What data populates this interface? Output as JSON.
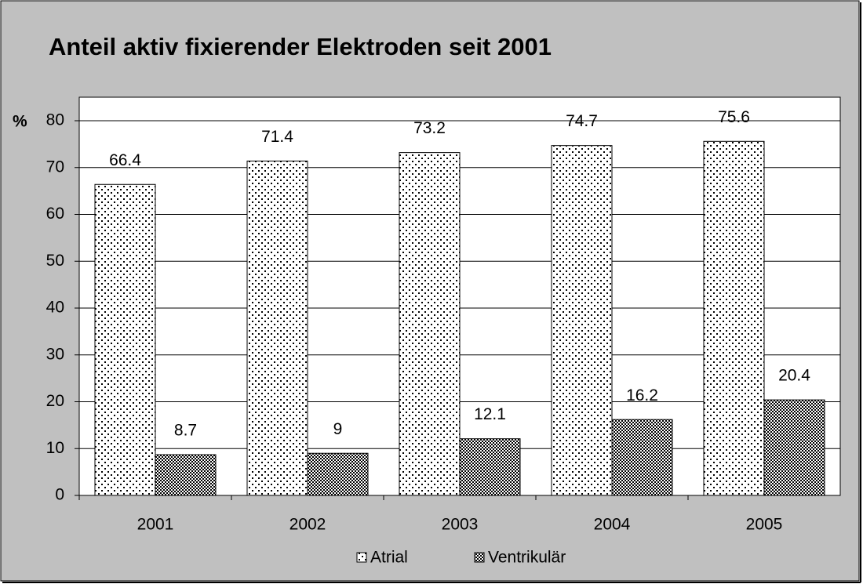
{
  "chart_data": {
    "type": "bar",
    "title": "Anteil aktiv fixierender Elektroden seit 2001",
    "y_label": "%",
    "categories": [
      "2001",
      "2002",
      "2003",
      "2004",
      "2005"
    ],
    "series": [
      {
        "name": "Atrial",
        "color": "#ffffff",
        "values": [
          66.4,
          71.4,
          73.2,
          74.7,
          75.6
        ]
      },
      {
        "name": "Ventrikulär",
        "color": "#555555",
        "values": [
          8.7,
          9,
          12.1,
          16.2,
          20.4
        ]
      }
    ],
    "ylim": [
      0,
      80
    ],
    "yticks": [
      0,
      10,
      20,
      30,
      40,
      50,
      60,
      70,
      80
    ],
    "grid": true,
    "legend": "bottom"
  }
}
